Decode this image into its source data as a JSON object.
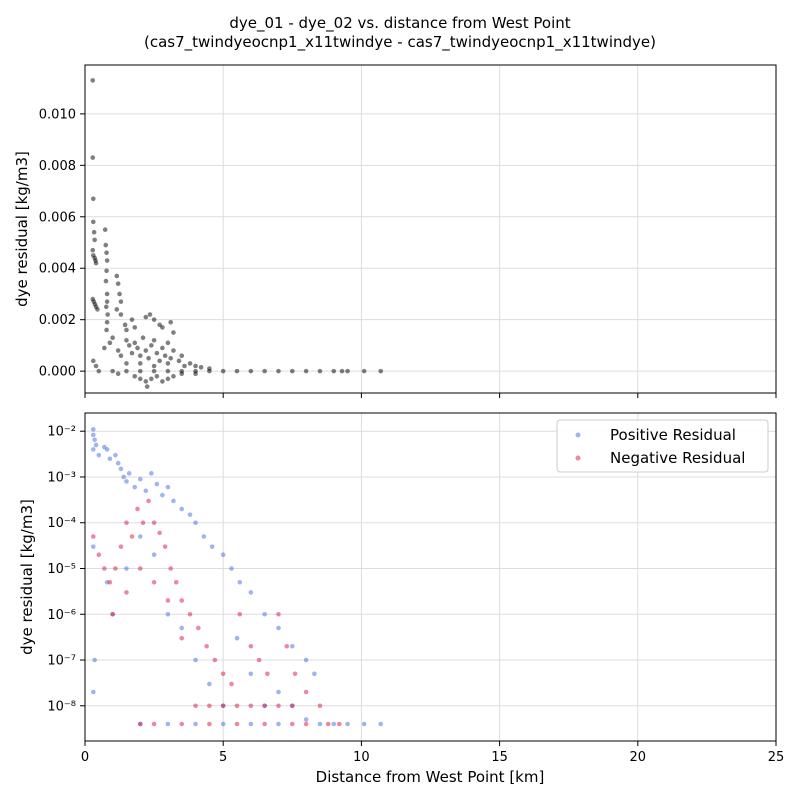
{
  "figure": {
    "title_line1": "dye_01 - dye_02 vs. distance from West Point",
    "title_line2": "(cas7_twindyeocnp1_x11twindye - cas7_twindyeocnp1_x11twindye)"
  },
  "colors": {
    "all": "#000000",
    "positive": "#4169e1",
    "negative": "#dc143c",
    "grid": "#dddddd"
  },
  "chart_data": [
    {
      "type": "scatter",
      "panel": "top",
      "xlabel": "",
      "ylabel": "dye residual [kg/m3]",
      "xlim": [
        0,
        25
      ],
      "ylim": [
        -0.00085,
        0.0119
      ],
      "yscale": "linear",
      "yticks": [
        0.0,
        0.002,
        0.004,
        0.006,
        0.008,
        0.01
      ],
      "ytick_labels": [
        "0.000",
        "0.002",
        "0.004",
        "0.006",
        "0.008",
        "0.010"
      ],
      "xticks": [
        0,
        5,
        10,
        15,
        20,
        25
      ],
      "grid": true,
      "series": [
        {
          "color": "#000000",
          "points": [
            [
              0.28,
              0.0113
            ],
            [
              0.28,
              0.0083
            ],
            [
              0.3,
              0.0067
            ],
            [
              0.3,
              0.0058
            ],
            [
              0.33,
              0.0054
            ],
            [
              0.35,
              0.0051
            ],
            [
              0.28,
              0.0047
            ],
            [
              0.3,
              0.0045
            ],
            [
              0.35,
              0.0044
            ],
            [
              0.38,
              0.0043
            ],
            [
              0.4,
              0.0042
            ],
            [
              0.28,
              0.0028
            ],
            [
              0.32,
              0.0027
            ],
            [
              0.36,
              0.0026
            ],
            [
              0.4,
              0.0025
            ],
            [
              0.45,
              0.0024
            ],
            [
              0.73,
              0.0055
            ],
            [
              0.75,
              0.0049
            ],
            [
              0.78,
              0.0046
            ],
            [
              0.8,
              0.0043
            ],
            [
              0.78,
              0.0039
            ],
            [
              0.76,
              0.0035
            ],
            [
              0.8,
              0.003
            ],
            [
              0.8,
              0.0027
            ],
            [
              0.77,
              0.0025
            ],
            [
              0.82,
              0.0022
            ],
            [
              0.8,
              0.0019
            ],
            [
              0.78,
              0.0016
            ],
            [
              1.15,
              0.0037
            ],
            [
              1.2,
              0.0034
            ],
            [
              1.25,
              0.003
            ],
            [
              1.3,
              0.0027
            ],
            [
              1.15,
              0.0024
            ],
            [
              1.3,
              0.0022
            ],
            [
              1.45,
              0.0018
            ],
            [
              1.5,
              0.0016
            ],
            [
              1.7,
              0.002
            ],
            [
              1.8,
              0.0017
            ],
            [
              2.2,
              0.0021
            ],
            [
              2.35,
              0.0022
            ],
            [
              2.5,
              0.002
            ],
            [
              2.7,
              0.0018
            ],
            [
              2.8,
              0.0017
            ],
            [
              3.1,
              0.0019
            ],
            [
              3.2,
              0.0015
            ],
            [
              0.3,
              0.0004
            ],
            [
              0.4,
              0.0002
            ],
            [
              0.5,
              0.0
            ],
            [
              0.7,
              0.0009
            ],
            [
              0.9,
              0.0011
            ],
            [
              1.0,
              0.0013
            ],
            [
              1.2,
              0.0008
            ],
            [
              1.3,
              0.0006
            ],
            [
              1.5,
              0.0012
            ],
            [
              1.6,
              0.001
            ],
            [
              1.7,
              0.0007
            ],
            [
              1.8,
              0.0011
            ],
            [
              1.9,
              0.0009
            ],
            [
              2.0,
              0.0006
            ],
            [
              2.1,
              0.0013
            ],
            [
              2.2,
              0.0008
            ],
            [
              2.3,
              0.0005
            ],
            [
              2.4,
              0.001
            ],
            [
              2.5,
              0.0012
            ],
            [
              2.6,
              0.0007
            ],
            [
              2.7,
              0.0004
            ],
            [
              2.8,
              0.0009
            ],
            [
              2.9,
              0.0006
            ],
            [
              3.0,
              0.0011
            ],
            [
              3.1,
              0.0005
            ],
            [
              3.2,
              0.0008
            ],
            [
              3.4,
              0.0004
            ],
            [
              3.5,
              0.0006
            ],
            [
              3.6,
              0.0002
            ],
            [
              3.8,
              0.0003
            ],
            [
              4.0,
              0.0002
            ],
            [
              4.2,
              0.00015
            ],
            [
              4.5,
              0.0001
            ],
            [
              1.5,
              0.0003
            ],
            [
              2.0,
              0.0003
            ],
            [
              2.5,
              0.0002
            ],
            [
              3.0,
              0.0003
            ],
            [
              1.8,
              -0.0002
            ],
            [
              2.0,
              -0.0003
            ],
            [
              2.2,
              -0.0004
            ],
            [
              2.25,
              -0.0006
            ],
            [
              2.4,
              -0.0003
            ],
            [
              2.6,
              -0.0002
            ],
            [
              2.8,
              -0.0004
            ],
            [
              3.0,
              -0.0003
            ],
            [
              3.2,
              -0.0002
            ],
            [
              3.5,
              -0.0001
            ],
            [
              1.2,
              -0.0001
            ],
            [
              4.0,
              -0.0001
            ],
            [
              1.0,
              0.0
            ],
            [
              1.5,
              0.0
            ],
            [
              2.0,
              0.0
            ],
            [
              2.5,
              0.0
            ],
            [
              3.0,
              0.0
            ],
            [
              3.5,
              0.0
            ],
            [
              4.0,
              0.0
            ],
            [
              4.5,
              0.0
            ],
            [
              5.0,
              0.0
            ],
            [
              5.5,
              0.0
            ],
            [
              6.0,
              0.0
            ],
            [
              6.5,
              0.0
            ],
            [
              7.0,
              0.0
            ],
            [
              7.5,
              0.0
            ],
            [
              8.0,
              0.0
            ],
            [
              8.5,
              0.0
            ],
            [
              9.0,
              0.0
            ],
            [
              9.3,
              0.0
            ],
            [
              9.5,
              0.0
            ],
            [
              10.1,
              0.0
            ],
            [
              10.7,
              0.0
            ]
          ]
        }
      ]
    },
    {
      "type": "scatter",
      "panel": "bottom",
      "xlabel": "Distance from West Point [km]",
      "ylabel": "dye residual [kg/m3]",
      "xlim": [
        0,
        25
      ],
      "ylim": [
        1.7e-09,
        0.025
      ],
      "yscale": "log",
      "yticks": [
        1e-08,
        1e-07,
        1e-06,
        1e-05,
        0.0001,
        0.001,
        0.01
      ],
      "ytick_labels": [
        "10⁻⁸",
        "10⁻⁷",
        "10⁻⁶",
        "10⁻⁵",
        "10⁻⁴",
        "10⁻³",
        "10⁻²"
      ],
      "xticks": [
        0,
        5,
        10,
        15,
        20,
        25
      ],
      "xtick_labels": [
        "0",
        "5",
        "10",
        "15",
        "20",
        "25"
      ],
      "grid": true,
      "legend_position": "top-right",
      "series": [
        {
          "name": "Positive Residual",
          "color": "#4169e1",
          "points": [
            [
              0.3,
              0.011
            ],
            [
              0.3,
              0.0083
            ],
            [
              0.35,
              0.0065
            ],
            [
              0.4,
              0.005
            ],
            [
              0.3,
              0.004
            ],
            [
              0.5,
              0.003
            ],
            [
              0.7,
              0.0045
            ],
            [
              0.8,
              0.004
            ],
            [
              0.9,
              0.0025
            ],
            [
              1.1,
              0.003
            ],
            [
              1.2,
              0.002
            ],
            [
              1.3,
              0.0015
            ],
            [
              1.4,
              0.001
            ],
            [
              1.5,
              0.0008
            ],
            [
              1.6,
              0.0012
            ],
            [
              1.8,
              0.0006
            ],
            [
              2.0,
              0.0009
            ],
            [
              2.2,
              0.0005
            ],
            [
              2.4,
              0.0012
            ],
            [
              2.6,
              0.0007
            ],
            [
              2.8,
              0.0004
            ],
            [
              3.0,
              0.0006
            ],
            [
              3.2,
              0.0003
            ],
            [
              3.5,
              0.0002
            ],
            [
              3.8,
              0.00015
            ],
            [
              4.0,
              0.0001
            ],
            [
              4.3,
              5e-05
            ],
            [
              4.6,
              3e-05
            ],
            [
              5.0,
              2e-05
            ],
            [
              5.3,
              1e-05
            ],
            [
              5.6,
              5e-06
            ],
            [
              6.0,
              3e-06
            ],
            [
              6.5,
              1e-06
            ],
            [
              7.0,
              5e-07
            ],
            [
              7.5,
              2e-07
            ],
            [
              8.0,
              1e-07
            ],
            [
              8.3,
              5e-08
            ],
            [
              0.3,
              3e-05
            ],
            [
              0.35,
              1e-07
            ],
            [
              0.3,
              2e-08
            ],
            [
              0.8,
              5e-06
            ],
            [
              1.0,
              1e-06
            ],
            [
              1.5,
              1e-05
            ],
            [
              2.0,
              5e-05
            ],
            [
              2.5,
              2e-05
            ],
            [
              3.0,
              1e-06
            ],
            [
              3.5,
              5e-07
            ],
            [
              4.0,
              1e-07
            ],
            [
              4.5,
              3e-08
            ],
            [
              5.0,
              1e-08
            ],
            [
              5.5,
              3e-07
            ],
            [
              6.0,
              5e-08
            ],
            [
              6.5,
              1e-08
            ],
            [
              7.0,
              2e-08
            ],
            [
              7.5,
              1e-08
            ],
            [
              8.0,
              5e-09
            ],
            [
              8.5,
              4e-09
            ],
            [
              9.0,
              4e-09
            ],
            [
              9.5,
              4e-09
            ],
            [
              10.1,
              4e-09
            ],
            [
              10.7,
              4e-09
            ],
            [
              2.0,
              4e-09
            ],
            [
              3.0,
              4e-09
            ],
            [
              4.0,
              4e-09
            ],
            [
              5.0,
              4e-09
            ],
            [
              6.0,
              4e-09
            ],
            [
              7.0,
              4e-09
            ]
          ]
        },
        {
          "name": "Negative Residual",
          "color": "#dc143c",
          "points": [
            [
              0.3,
              5e-05
            ],
            [
              0.5,
              2e-05
            ],
            [
              0.7,
              1e-05
            ],
            [
              0.9,
              5e-06
            ],
            [
              1.1,
              1e-05
            ],
            [
              1.3,
              3e-05
            ],
            [
              1.5,
              0.0001
            ],
            [
              1.7,
              5e-05
            ],
            [
              1.9,
              0.0002
            ],
            [
              2.1,
              0.0001
            ],
            [
              2.3,
              0.0003
            ],
            [
              2.5,
              0.0001
            ],
            [
              2.7,
              6e-05
            ],
            [
              2.9,
              3e-05
            ],
            [
              3.1,
              1e-05
            ],
            [
              3.3,
              5e-06
            ],
            [
              3.5,
              2e-06
            ],
            [
              3.8,
              1e-06
            ],
            [
              4.1,
              5e-07
            ],
            [
              4.4,
              2e-07
            ],
            [
              4.7,
              1e-07
            ],
            [
              5.0,
              5e-08
            ],
            [
              5.3,
              3e-08
            ],
            [
              5.6,
              1e-06
            ],
            [
              6.0,
              2e-07
            ],
            [
              6.3,
              1e-07
            ],
            [
              6.6,
              5e-08
            ],
            [
              7.0,
              1e-06
            ],
            [
              7.3,
              2e-07
            ],
            [
              7.6,
              5e-08
            ],
            [
              8.0,
              2e-08
            ],
            [
              8.5,
              1e-08
            ],
            [
              1.0,
              1e-06
            ],
            [
              1.5,
              3e-06
            ],
            [
              2.0,
              1e-05
            ],
            [
              2.5,
              5e-06
            ],
            [
              3.0,
              2e-06
            ],
            [
              3.5,
              3e-07
            ],
            [
              4.0,
              1e-08
            ],
            [
              4.5,
              1e-08
            ],
            [
              5.0,
              1e-08
            ],
            [
              5.5,
              1e-08
            ],
            [
              6.0,
              1e-08
            ],
            [
              6.5,
              1e-08
            ],
            [
              7.0,
              1e-08
            ],
            [
              7.5,
              1e-08
            ],
            [
              2.0,
              4e-09
            ],
            [
              2.5,
              4e-09
            ],
            [
              3.5,
              4e-09
            ],
            [
              4.5,
              4e-09
            ],
            [
              5.5,
              4e-09
            ],
            [
              6.5,
              4e-09
            ],
            [
              7.5,
              4e-09
            ],
            [
              8.0,
              4e-09
            ],
            [
              8.8,
              4e-09
            ],
            [
              9.2,
              4e-09
            ]
          ]
        }
      ]
    }
  ]
}
